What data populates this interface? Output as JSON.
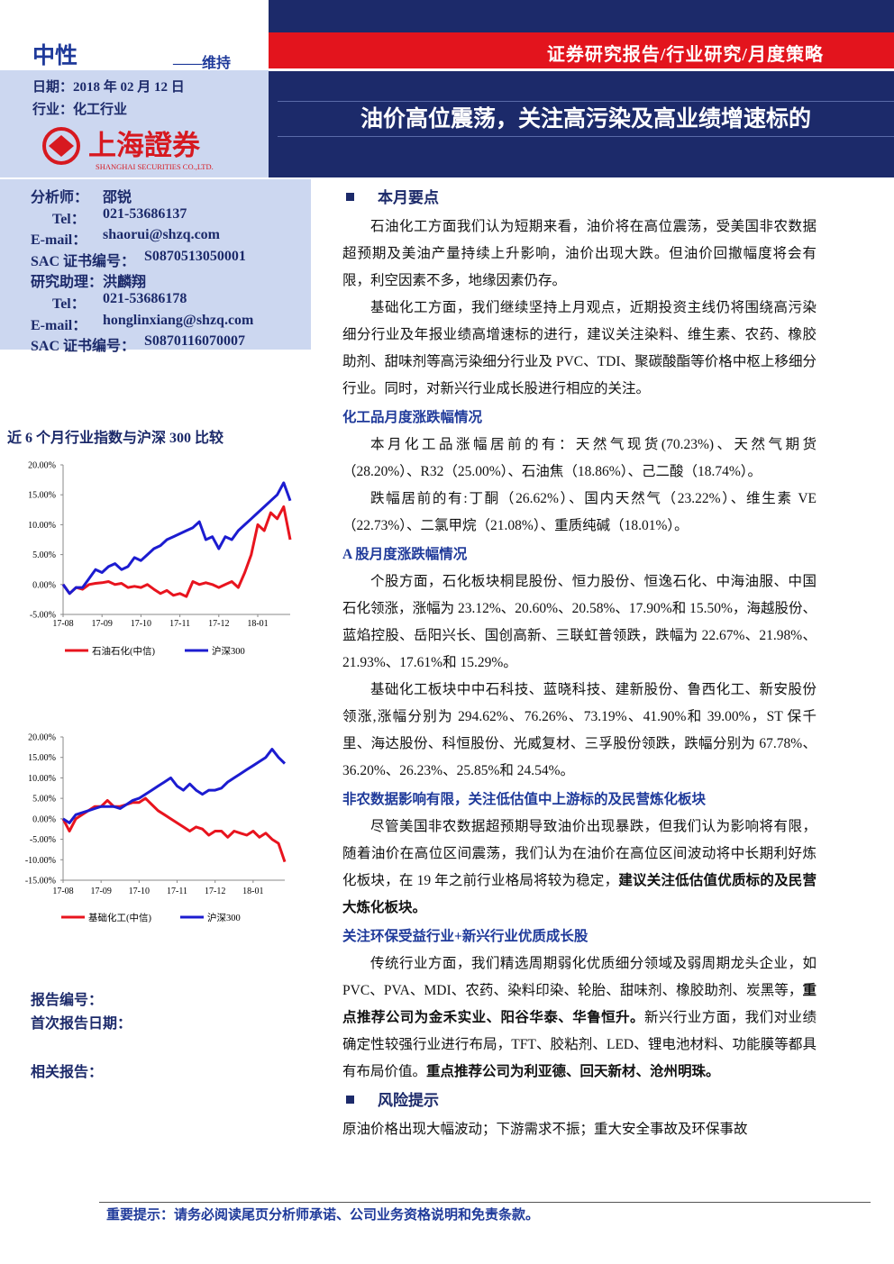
{
  "header": {
    "rating": "中性",
    "rating_note": "——维持",
    "date": "日期：2018 年 02 月 12 日",
    "industry": "行业：化工行业",
    "logo_cn": "上海證券",
    "logo_en": "SHANGHAI SECURITIES CO.,LTD.",
    "report_type": "证券研究报告/行业研究/月度策略",
    "title": "油价高位震荡，关注高污染及高业绩增速标的"
  },
  "analysts": [
    [
      "分析师：",
      "邵锐"
    ],
    [
      "Tel：",
      "021-53686137"
    ],
    [
      "E-mail：",
      "shaorui@shzq.com"
    ],
    [
      "SAC 证书编号：",
      "S0870513050001"
    ],
    [
      "研究助理：",
      "洪麟翔"
    ],
    [
      "Tel：",
      "021-53686178"
    ],
    [
      "E-mail：",
      "honglinxiang@shzq.com"
    ],
    [
      "SAC 证书编号：",
      "S0870116070007"
    ]
  ],
  "chart_caption": "近 6 个月行业指数与沪深 300 比较",
  "report_info": [
    "报告编号：",
    "首次报告日期：",
    "相关报告："
  ],
  "sections": [
    {
      "heading": "本月要点",
      "level": "main",
      "paragraphs": [
        [
          "石油化工方面我们认为短期来看，油价将在高位震荡，受美国非农数据超预期及美油产量持续上升影响，油价出现大跌。但油价回撤幅度将会有限，利空因素不多，地缘因素仍存。"
        ],
        [
          "基础化工方面，我们继续坚持上月观点，近期投资主线仍将围绕高污染细分行业及年报业绩高增速标的进行，建议关注染料、维生素、农药、橡胶助剂、甜味剂等高污染细分行业及 PVC、TDI、聚碳酸酯等价格中枢上移细分行业。同时，对新兴行业成长股进行相应的关注。"
        ]
      ]
    },
    {
      "heading": "化工品月度涨跌幅情况",
      "level": "sub",
      "paragraphs": [
        [
          "本月化工品涨幅居前的有：天然气现货(70.23%)、天然气期货（28.20%）、R32（25.00%）、石油焦（18.86%）、己二酸（18.74%）。"
        ],
        [
          "跌幅居前的有:丁酮（26.62%）、国内天然气（23.22%）、维生素 VE（22.73%）、二氯甲烷（21.08%）、重质纯碱（18.01%）。"
        ]
      ]
    },
    {
      "heading": "A 股月度涨跌幅情况",
      "level": "sub",
      "paragraphs": [
        [
          "个股方面，石化板块桐昆股份、恒力股份、恒逸石化、中海油服、中国石化领涨，涨幅为 23.12%、20.60%、20.58%、17.90%和 15.50%，海越股份、蓝焰控股、岳阳兴长、国创高新、三联虹普领跌，跌幅为 22.67%、21.98%、21.93%、17.61%和 15.29%。"
        ],
        [
          "基础化工板块中中石科技、蓝晓科技、建新股份、鲁西化工、新安股份领涨,涨幅分别为 294.62%、76.26%、73.19%、41.90%和 39.00%，ST 保千里、海达股份、科恒股份、光威复材、三孚股份领跌，跌幅分别为 67.78%、36.20%、26.23%、25.85%和 24.54%。"
        ]
      ]
    },
    {
      "heading": "非农数据影响有限，关注低估值中上游标的及民营炼化板块",
      "level": "sub",
      "paragraphs": [
        [
          "尽管美国非农数据超预期导致油价出现暴跌，但我们认为影响将有限，随着油价在高位区间震荡，我们认为在油价在高位区间波动将中长期利好炼化板块，在 19 年之前行业格局将较为稳定，",
          {
            "bold": "建议关注低估值优质标的及民营大炼化板块。"
          }
        ]
      ]
    },
    {
      "heading": "关注环保受益行业+新兴行业优质成长股",
      "level": "sub",
      "paragraphs": [
        [
          "传统行业方面，我们精选周期弱化优质细分领域及弱周期龙头企业，如 PVC、PVA、MDI、农药、染料印染、轮胎、甜味剂、橡胶助剂、炭黑等，",
          {
            "bold": "重点推荐公司为金禾实业、阳谷华泰、华鲁恒升。"
          },
          "新兴行业方面，我们对业绩确定性较强行业进行布局，TFT、胶粘剂、LED、锂电池材料、功能膜等都具有布局价值。",
          {
            "bold": "重点推荐公司为利亚德、回天新材、沧州明珠。"
          }
        ]
      ]
    },
    {
      "heading": "风险提示",
      "level": "main",
      "noindent": true,
      "paragraphs": [
        [
          "原油价格出现大幅波动；下游需求不振；重大安全事故及环保事故"
        ]
      ]
    }
  ],
  "footer": "重要提示：请务必阅读尾页分析师承诺、公司业务资格说明和免责条款。",
  "chart_data": [
    {
      "type": "line",
      "categories": [
        "17-08",
        null,
        null,
        null,
        null,
        null,
        "17-09",
        null,
        null,
        null,
        null,
        null,
        "17-10",
        null,
        null,
        null,
        null,
        null,
        "17-11",
        null,
        null,
        null,
        null,
        null,
        "17-12",
        null,
        null,
        null,
        null,
        null,
        "18-01",
        null,
        null,
        null,
        null,
        null
      ],
      "series": [
        {
          "name": "石油石化(中信)",
          "color": "#e8141e",
          "values": [
            0,
            -1.5,
            -0.5,
            -0.8,
            0,
            0.2,
            0.3,
            0.5,
            0,
            0.2,
            -0.5,
            -0.3,
            -0.5,
            0,
            -0.8,
            -1.5,
            -1,
            -1.8,
            -1.5,
            -2,
            0.5,
            0,
            0.3,
            0,
            -0.5,
            0,
            0.5,
            -0.5,
            2,
            5,
            10,
            9,
            12,
            11,
            13,
            7.5
          ]
        },
        {
          "name": "沪深300",
          "color": "#1c1cd0",
          "values": [
            0,
            -1.5,
            -0.5,
            -0.5,
            1,
            2.5,
            2,
            3,
            3.5,
            2.5,
            3,
            4.5,
            4,
            5,
            6,
            6.5,
            7.5,
            8,
            8.5,
            9,
            9.5,
            10.5,
            7.5,
            8,
            6,
            8,
            7.5,
            9,
            10,
            11,
            12,
            13,
            14,
            15,
            17,
            14
          ]
        }
      ],
      "ylim": [
        -5,
        20
      ],
      "yticks": [
        {
          "value": -5,
          "label": "-5.00%"
        },
        {
          "value": 0,
          "label": "0.00%"
        },
        {
          "value": 5,
          "label": "5.00%"
        },
        {
          "value": 10,
          "label": "10.00%"
        },
        {
          "value": 15,
          "label": "15.00%"
        },
        {
          "value": 20,
          "label": "20.00%"
        }
      ]
    },
    {
      "type": "line",
      "categories": [
        "17-08",
        null,
        null,
        null,
        null,
        null,
        "17-09",
        null,
        null,
        null,
        null,
        null,
        "17-10",
        null,
        null,
        null,
        null,
        null,
        "17-11",
        null,
        null,
        null,
        null,
        null,
        "17-12",
        null,
        null,
        null,
        null,
        null,
        "18-01",
        null,
        null,
        null,
        null,
        null
      ],
      "series": [
        {
          "name": "基础化工(中信)",
          "color": "#e8141e",
          "values": [
            0,
            -3,
            0,
            1,
            2,
            3,
            3,
            4.5,
            3,
            3,
            3.5,
            4,
            4,
            5,
            3.5,
            2,
            1,
            0,
            -1,
            -2,
            -3,
            -2,
            -2.5,
            -4,
            -3,
            -3,
            -4.5,
            -3,
            -3.5,
            -4,
            -3,
            -4.5,
            -3.5,
            -5,
            -6,
            -10.5
          ]
        },
        {
          "name": "沪深300",
          "color": "#1c1cd0",
          "values": [
            0,
            -1,
            1,
            1.5,
            2,
            2.5,
            3,
            3,
            3,
            2.5,
            3.5,
            4.5,
            5,
            6,
            7,
            8,
            9,
            10,
            8,
            7,
            8.5,
            7,
            6,
            7,
            7,
            7.5,
            9,
            10,
            11,
            12,
            13,
            14,
            15,
            17,
            15,
            13.5
          ]
        }
      ],
      "ylim": [
        -15,
        20
      ],
      "yticks": [
        {
          "value": -15,
          "label": "-15.00%"
        },
        {
          "value": -10,
          "label": "-10.00%"
        },
        {
          "value": -5,
          "label": "-5.00%"
        },
        {
          "value": 0,
          "label": "0.00%"
        },
        {
          "value": 5,
          "label": "5.00%"
        },
        {
          "value": 10,
          "label": "10.00%"
        },
        {
          "value": 15,
          "label": "15.00%"
        },
        {
          "value": 20,
          "label": "20.00%"
        }
      ]
    }
  ]
}
